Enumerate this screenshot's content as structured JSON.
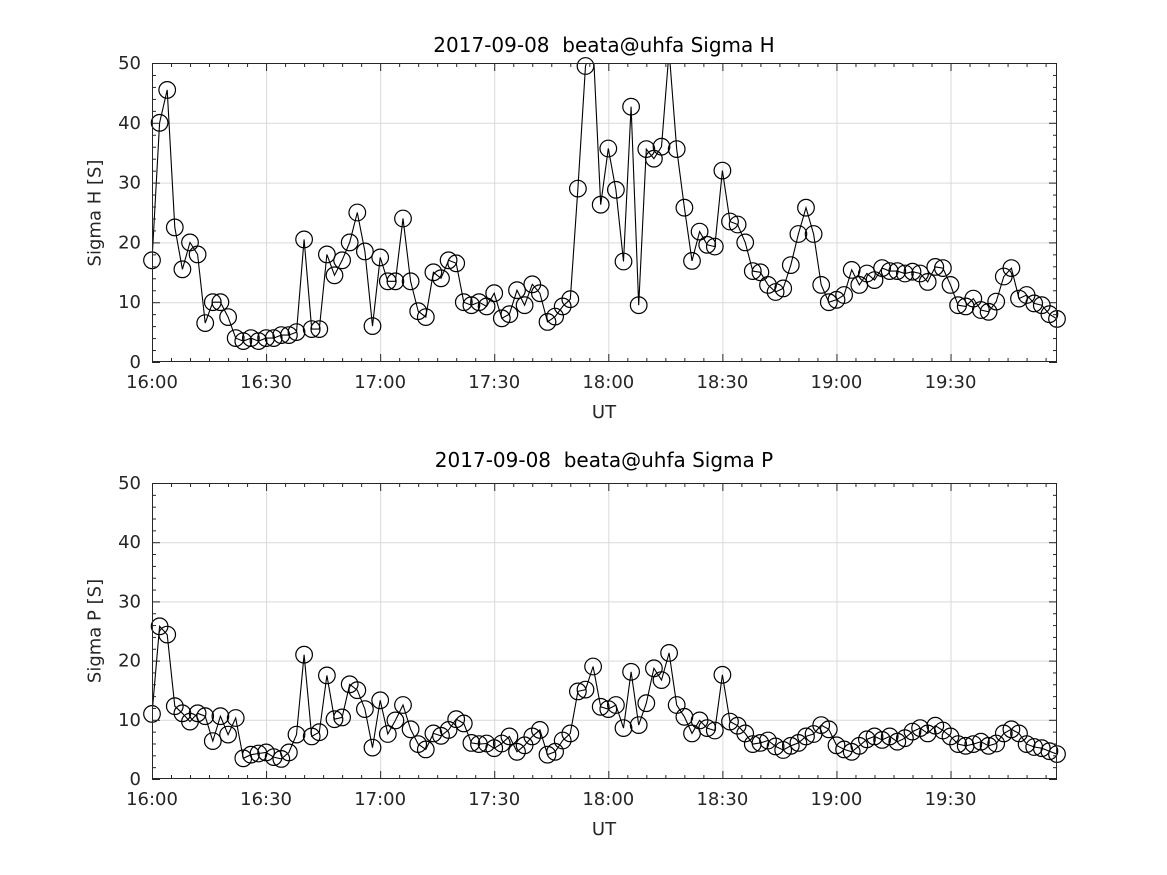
{
  "page": {
    "background": "#ffffff",
    "description": "Two stacked MATLAB-style line plots with open circle markers"
  },
  "colors": {
    "line": "#000000",
    "marker": "#000000",
    "grid": "#d9d9d9",
    "axis": "#262626",
    "tick_label": "#262626",
    "background": "#ffffff"
  },
  "chart_data": [
    {
      "type": "line",
      "title": "2017-09-08  beata@uhfa Sigma H",
      "xlabel": "UT",
      "ylabel": "Sigma H [S]",
      "marker": "open-circle",
      "ylim": [
        0,
        50
      ],
      "y_ticks": [
        0,
        10,
        20,
        30,
        40,
        50
      ],
      "y_minor_step": 2,
      "xlim_minutes": [
        0,
        238
      ],
      "x_start_label": "16:00",
      "x_tick_minutes": [
        0,
        30,
        60,
        90,
        120,
        150,
        180,
        210
      ],
      "x_tick_labels": [
        "16:00",
        "16:30",
        "17:00",
        "17:30",
        "18:00",
        "18:30",
        "19:00",
        "19:30"
      ],
      "x_minor_step_min": 5,
      "sample_step_min": 2,
      "grid": true,
      "values": [
        17,
        40,
        45.5,
        22.5,
        15.5,
        20,
        18,
        6.5,
        10,
        10,
        7.5,
        4,
        3.5,
        4,
        3.5,
        4,
        4,
        4.5,
        4.5,
        5,
        20.5,
        5.5,
        5.5,
        18,
        14.5,
        17,
        20,
        25,
        18.5,
        6,
        17.5,
        13.5,
        13.5,
        24,
        13.5,
        8.5,
        7.5,
        15,
        14,
        17,
        16.5,
        10,
        9.5,
        10,
        9.3,
        11.5,
        7.3,
        8,
        12,
        9.5,
        13,
        11.5,
        6.7,
        7.6,
        9.3,
        10.5,
        29,
        49.5,
        53,
        26.3,
        35.7,
        28.8,
        16.8,
        42.7,
        9.5,
        35.6,
        34,
        36,
        52,
        35.6,
        25.8,
        16.9,
        21.8,
        19.6,
        19.3,
        32,
        23.5,
        23,
        20,
        15.2,
        15,
        12.9,
        11.7,
        12.3,
        16.2,
        21.4,
        25.8,
        21.4,
        12.9,
        10,
        10.4,
        11.2,
        15.4,
        12.9,
        14.8,
        13.7,
        15.7,
        15.2,
        15.2,
        14.8,
        15.1,
        14.8,
        13.4,
        15.9,
        15.7,
        12.9,
        9.5,
        9.3,
        10.6,
        8.7,
        8.4,
        10.1,
        14.3,
        15.7,
        10.6,
        11.2,
        9.8,
        9.5,
        8,
        7.2
      ]
    },
    {
      "type": "line",
      "title": "2017-09-08  beata@uhfa Sigma P",
      "xlabel": "UT",
      "ylabel": "Sigma P [S]",
      "marker": "open-circle",
      "ylim": [
        0,
        50
      ],
      "y_ticks": [
        0,
        10,
        20,
        30,
        40,
        50
      ],
      "y_minor_step": 2,
      "xlim_minutes": [
        0,
        238
      ],
      "x_start_label": "16:00",
      "x_tick_minutes": [
        0,
        30,
        60,
        90,
        120,
        150,
        180,
        210
      ],
      "x_tick_labels": [
        "16:00",
        "16:30",
        "17:00",
        "17:30",
        "18:00",
        "18:30",
        "19:00",
        "19:30"
      ],
      "x_minor_step_min": 5,
      "sample_step_min": 2,
      "grid": true,
      "values": [
        11,
        25.8,
        24.4,
        12.3,
        11.1,
        9.7,
        11.1,
        10.6,
        6.4,
        10.6,
        7.5,
        10.3,
        3.5,
        4.1,
        4.3,
        4.5,
        3.7,
        3.4,
        4.5,
        7.5,
        21,
        7.2,
        7.9,
        17.5,
        10.1,
        10.4,
        16,
        15,
        11.8,
        5.3,
        13.3,
        7.6,
        9.9,
        12.5,
        8.4,
        5.9,
        5,
        7.7,
        7.3,
        8.3,
        10.1,
        9.4,
        6.1,
        5.9,
        6,
        5.2,
        6,
        7.2,
        4.6,
        5.7,
        7.2,
        8.3,
        4.1,
        4.6,
        6.5,
        7.7,
        14.8,
        15.1,
        19,
        12.2,
        11.8,
        12.5,
        8.6,
        18.1,
        9.1,
        12.8,
        18.7,
        16.7,
        21.3,
        12.5,
        10.5,
        7.7,
        9.9,
        8.6,
        8.2,
        17.6,
        9.7,
        9,
        7.7,
        5.9,
        6.1,
        6.5,
        5.5,
        4.9,
        5.6,
        6.1,
        7.2,
        7.6,
        9.1,
        8.4,
        5.7,
        5,
        4.6,
        5.6,
        6.7,
        7.2,
        6.6,
        7.2,
        6.3,
        6.9,
        8,
        8.6,
        7.7,
        9,
        8.2,
        7.2,
        5.9,
        5.6,
        5.9,
        6.3,
        5.6,
        6,
        7.7,
        8.4,
        7.7,
        5.9,
        5.4,
        5.2,
        4.7,
        4.2
      ]
    }
  ]
}
